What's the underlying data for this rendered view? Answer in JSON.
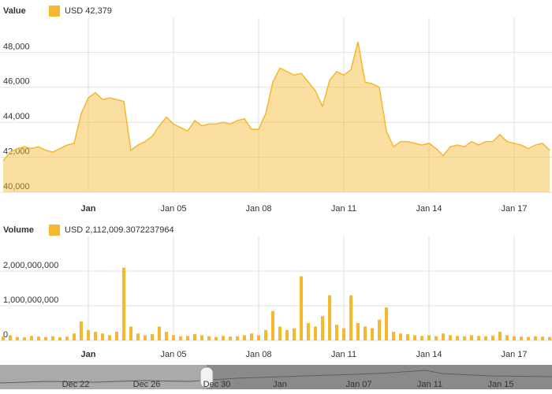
{
  "chart_data": [
    {
      "type": "area",
      "title": "Value",
      "categories": [
        null,
        null,
        null,
        null,
        null,
        null,
        null,
        null,
        null,
        null,
        null,
        null,
        "Jan",
        null,
        null,
        null,
        null,
        null,
        null,
        null,
        null,
        null,
        null,
        null,
        "Jan 05",
        null,
        null,
        null,
        null,
        null,
        null,
        null,
        null,
        null,
        null,
        null,
        "Jan 08",
        null,
        null,
        null,
        null,
        null,
        null,
        null,
        null,
        null,
        null,
        null,
        "Jan 11",
        null,
        null,
        null,
        null,
        null,
        null,
        null,
        null,
        null,
        null,
        null,
        "Jan 14",
        null,
        null,
        null,
        null,
        null,
        null,
        null,
        null,
        null,
        null,
        null,
        "Jan 17",
        null,
        null,
        null,
        null,
        null
      ],
      "series": [
        {
          "name": "USD 42,379",
          "color": "#f5b82e",
          "values": [
            41800,
            42300,
            42500,
            42600,
            42500,
            42600,
            42400,
            42300,
            42500,
            42700,
            42800,
            44500,
            45400,
            45700,
            45300,
            45400,
            45300,
            45200,
            42400,
            42700,
            42900,
            43200,
            43800,
            44300,
            43900,
            43700,
            43500,
            44100,
            43800,
            43900,
            43900,
            44000,
            43900,
            44100,
            44200,
            43600,
            43600,
            44500,
            46300,
            47100,
            46900,
            46700,
            46800,
            46300,
            45800,
            44900,
            46400,
            46900,
            46700,
            47000,
            48600,
            46300,
            46200,
            46000,
            43500,
            42600,
            42900,
            42900,
            42800,
            42700,
            42800,
            42500,
            42100,
            42600,
            42700,
            42600,
            42900,
            42700,
            42900,
            42900,
            43300,
            42900,
            42800,
            42700,
            42500,
            42700,
            42800,
            42400
          ]
        }
      ],
      "ylim": [
        40000,
        50000
      ],
      "yticks": [
        {
          "value": 40000,
          "label": "40,000"
        },
        {
          "value": 42000,
          "label": "42,000"
        },
        {
          "value": 44000,
          "label": "44,000"
        },
        {
          "value": 46000,
          "label": "46,000"
        },
        {
          "value": 48000,
          "label": "48,000"
        }
      ],
      "grid": true
    },
    {
      "type": "bar",
      "title": "Volume",
      "categories": [
        null,
        null,
        null,
        null,
        null,
        null,
        null,
        null,
        null,
        null,
        null,
        null,
        "Jan",
        null,
        null,
        null,
        null,
        null,
        null,
        null,
        null,
        null,
        null,
        null,
        "Jan 05",
        null,
        null,
        null,
        null,
        null,
        null,
        null,
        null,
        null,
        null,
        null,
        "Jan 08",
        null,
        null,
        null,
        null,
        null,
        null,
        null,
        null,
        null,
        null,
        null,
        "Jan 11",
        null,
        null,
        null,
        null,
        null,
        null,
        null,
        null,
        null,
        null,
        null,
        "Jan 14",
        null,
        null,
        null,
        null,
        null,
        null,
        null,
        null,
        null,
        null,
        null,
        "Jan 17",
        null,
        null,
        null,
        null,
        null
      ],
      "series": [
        {
          "name": "USD 2,112,009.3072237964",
          "color": "#f5b82e",
          "values": [
            120000000,
            150000000,
            100000000,
            90000000,
            130000000,
            110000000,
            100000000,
            120000000,
            90000000,
            110000000,
            200000000,
            550000000,
            300000000,
            250000000,
            200000000,
            150000000,
            250000000,
            2100000000,
            400000000,
            200000000,
            150000000,
            180000000,
            400000000,
            250000000,
            150000000,
            120000000,
            130000000,
            180000000,
            150000000,
            120000000,
            100000000,
            130000000,
            110000000,
            120000000,
            150000000,
            200000000,
            150000000,
            300000000,
            850000000,
            400000000,
            300000000,
            350000000,
            1850000000,
            500000000,
            400000000,
            700000000,
            1300000000,
            450000000,
            350000000,
            1300000000,
            500000000,
            400000000,
            350000000,
            600000000,
            950000000,
            250000000,
            200000000,
            180000000,
            150000000,
            130000000,
            150000000,
            120000000,
            200000000,
            150000000,
            130000000,
            120000000,
            150000000,
            130000000,
            120000000,
            140000000,
            250000000,
            150000000,
            120000000,
            110000000,
            100000000,
            120000000,
            110000000,
            100000000
          ]
        }
      ],
      "ylim": [
        0,
        3000000000
      ],
      "yticks": [
        0,
        {
          "value": 1000000000,
          "label": "1,000,000,000"
        },
        {
          "value": 2000000000,
          "label": "2,000,000,000"
        }
      ],
      "grid": true
    }
  ],
  "navigator": {
    "labels": [
      "Dec 22",
      "Dec 26",
      "Dec 30",
      "Jan",
      "Jan 07",
      "Jan 11",
      "Jan 15"
    ]
  }
}
